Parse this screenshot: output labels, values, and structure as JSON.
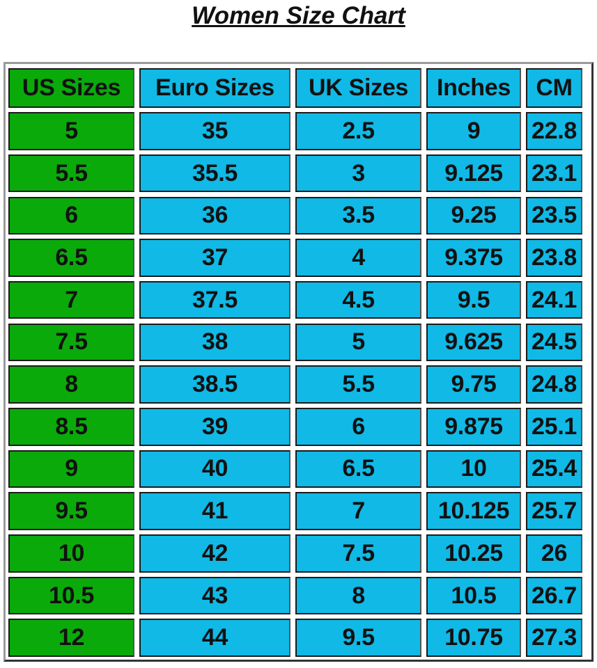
{
  "title": "Women Size Chart",
  "colors": {
    "us_column": "#0aaa0a",
    "other_columns": "#10b9e6"
  },
  "chart_data": {
    "type": "table",
    "title": "Women Size Chart",
    "columns": [
      "US Sizes",
      "Euro Sizes",
      "UK Sizes",
      "Inches",
      "CM"
    ],
    "rows": [
      [
        "5",
        "35",
        "2.5",
        "9",
        "22.8"
      ],
      [
        "5.5",
        "35.5",
        "3",
        "9.125",
        "23.1"
      ],
      [
        "6",
        "36",
        "3.5",
        "9.25",
        "23.5"
      ],
      [
        "6.5",
        "37",
        "4",
        "9.375",
        "23.8"
      ],
      [
        "7",
        "37.5",
        "4.5",
        "9.5",
        "24.1"
      ],
      [
        "7.5",
        "38",
        "5",
        "9.625",
        "24.5"
      ],
      [
        "8",
        "38.5",
        "5.5",
        "9.75",
        "24.8"
      ],
      [
        "8.5",
        "39",
        "6",
        "9.875",
        "25.1"
      ],
      [
        "9",
        "40",
        "6.5",
        "10",
        "25.4"
      ],
      [
        "9.5",
        "41",
        "7",
        "10.125",
        "25.7"
      ],
      [
        "10",
        "42",
        "7.5",
        "10.25",
        "26"
      ],
      [
        "10.5",
        "43",
        "8",
        "10.5",
        "26.7"
      ],
      [
        "12",
        "44",
        "9.5",
        "10.75",
        "27.3"
      ]
    ]
  }
}
